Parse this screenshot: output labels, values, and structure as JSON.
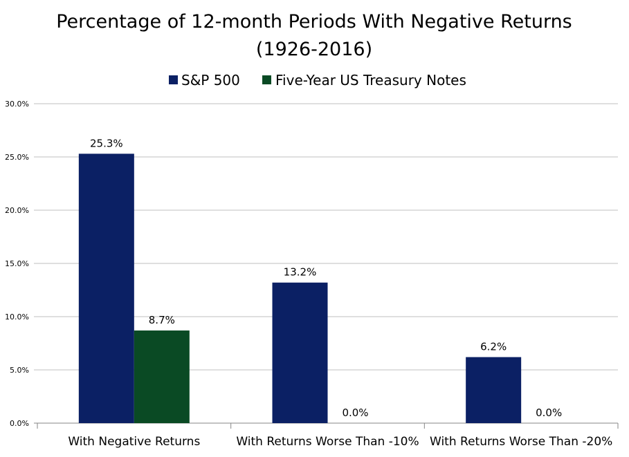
{
  "chart_data": {
    "type": "bar",
    "title_lines": [
      "Percentage of 12-month Periods With Negative Returns",
      "(1926-2016)"
    ],
    "categories": [
      "With Negative Returns",
      "With Returns Worse Than -10%",
      "With Returns Worse Than -20%"
    ],
    "series": [
      {
        "name": "S&P 500",
        "values": [
          25.3,
          13.2,
          6.2
        ],
        "labels": [
          "25.3%",
          "13.2%",
          "6.2%"
        ],
        "color": "#0b2064"
      },
      {
        "name": "Five-Year US Treasury Notes",
        "values": [
          8.7,
          0.0,
          0.0
        ],
        "labels": [
          "8.7%",
          "0.0%",
          "0.0%"
        ],
        "color": "#0a4a24"
      }
    ],
    "ylim": [
      0,
      30
    ],
    "yticks": [
      "0.0%",
      "5.0%",
      "10.0%",
      "15.0%",
      "20.0%",
      "25.0%",
      "30.0%"
    ],
    "grid": true,
    "legend_position": "top"
  }
}
